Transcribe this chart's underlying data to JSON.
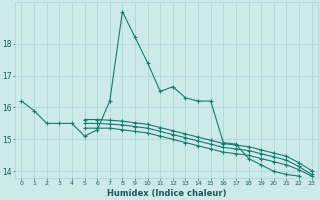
{
  "xlabel": "Humidex (Indice chaleur)",
  "background_color": "#cceae8",
  "grid_color": "#aad4d0",
  "line_color": "#1a7a6e",
  "x": [
    0,
    1,
    2,
    3,
    4,
    5,
    6,
    7,
    8,
    9,
    10,
    11,
    12,
    13,
    14,
    15,
    16,
    17,
    18,
    19,
    20,
    21,
    22,
    23
  ],
  "series1": [
    16.2,
    15.9,
    15.5,
    15.5,
    15.5,
    15.1,
    15.3,
    16.2,
    19.0,
    18.2,
    17.4,
    16.5,
    16.65,
    16.3,
    16.2,
    16.2,
    14.9,
    14.85,
    14.4,
    14.2,
    14.0,
    13.9,
    13.85,
    null
  ],
  "series2": [
    null,
    null,
    null,
    null,
    null,
    15.35,
    15.35,
    15.35,
    15.3,
    15.25,
    15.2,
    15.1,
    15.0,
    14.9,
    14.8,
    14.7,
    14.6,
    14.55,
    14.5,
    14.4,
    14.3,
    14.2,
    14.05,
    13.85
  ],
  "series3": [
    null,
    null,
    null,
    null,
    null,
    15.5,
    15.5,
    15.48,
    15.45,
    15.4,
    15.35,
    15.25,
    15.15,
    15.05,
    14.95,
    14.85,
    14.75,
    14.7,
    14.65,
    14.55,
    14.45,
    14.35,
    14.15,
    13.9
  ],
  "series4": [
    null,
    null,
    null,
    null,
    null,
    15.62,
    15.62,
    15.6,
    15.57,
    15.52,
    15.47,
    15.37,
    15.27,
    15.17,
    15.07,
    14.97,
    14.87,
    14.82,
    14.77,
    14.67,
    14.57,
    14.47,
    14.27,
    14.02
  ],
  "ylim": [
    13.8,
    19.3
  ],
  "yticks": [
    14,
    15,
    16,
    17,
    18
  ],
  "xticks": [
    0,
    1,
    2,
    3,
    4,
    5,
    6,
    7,
    8,
    9,
    10,
    11,
    12,
    13,
    14,
    15,
    16,
    17,
    18,
    19,
    20,
    21,
    22,
    23
  ]
}
